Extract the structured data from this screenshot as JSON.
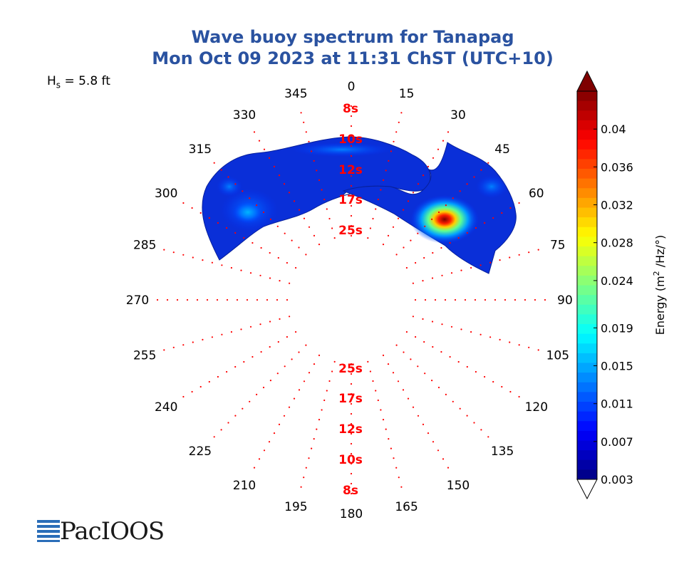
{
  "chart_data": {
    "type": "polar-contour",
    "title": "Wave buoy spectrum for Tanapag",
    "subtitle": "Mon Oct 09 2023 at 11:31 ChST (UTC+10)",
    "hs_label": "H",
    "hs_sub": "s",
    "hs_value": " = 5.8 ft",
    "direction_ticks": [
      "0",
      "15",
      "30",
      "45",
      "60",
      "75",
      "90",
      "105",
      "120",
      "135",
      "150",
      "165",
      "180",
      "195",
      "210",
      "225",
      "240",
      "255",
      "270",
      "285",
      "300",
      "315",
      "330",
      "345"
    ],
    "period_labels_north": [
      "8s",
      "10s",
      "12s",
      "17s",
      "25s"
    ],
    "period_labels_south": [
      "25s",
      "17s",
      "12s",
      "10s",
      "8s"
    ],
    "colorbar": {
      "label": "Energy (m",
      "label_sup": "2",
      "label_tail": " /Hz/°)",
      "ticks": [
        "0.04",
        "0.036",
        "0.032",
        "0.028",
        "0.024",
        "0.019",
        "0.015",
        "0.011",
        "0.007",
        "0.003"
      ],
      "tick_values": [
        0.04,
        0.036,
        0.032,
        0.028,
        0.024,
        0.019,
        0.015,
        0.011,
        0.007,
        0.003
      ],
      "min": 0.003,
      "max": 0.044,
      "colormap": "jet"
    },
    "energy_peaks": [
      {
        "direction_deg": 48,
        "period_s": 17,
        "energy": 0.044
      },
      {
        "direction_deg": 305,
        "period_s": 14,
        "energy": 0.012
      },
      {
        "direction_deg": 315,
        "period_s": 11,
        "energy": 0.009
      },
      {
        "direction_deg": 60,
        "period_s": 10,
        "energy": 0.008
      }
    ]
  },
  "logo": {
    "text": "PacIOOS"
  }
}
